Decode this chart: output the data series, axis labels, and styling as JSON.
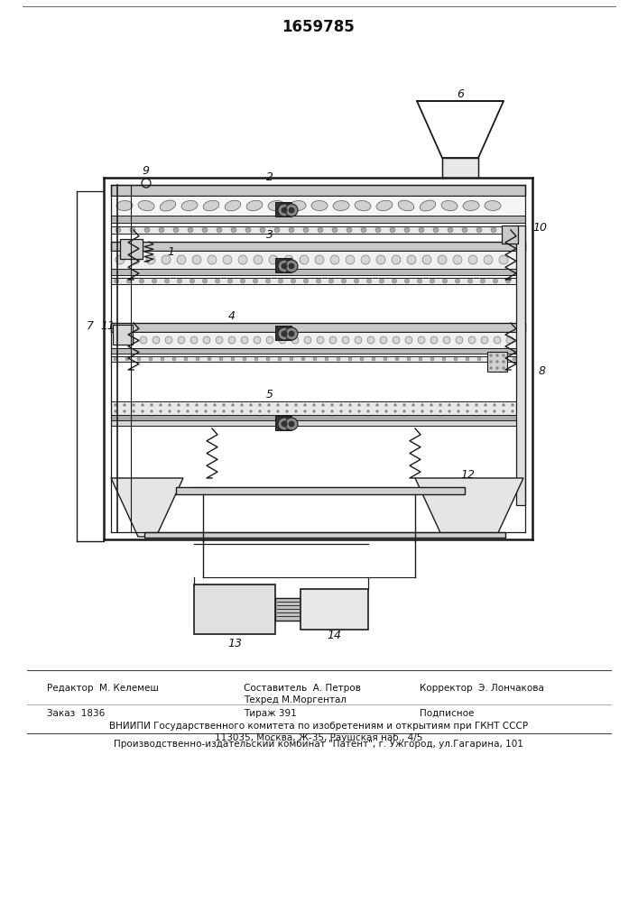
{
  "patent_number": "1659785",
  "editor_line": "Редактор  М. Келемеш",
  "compiler_line1": "Составитель  А. Петров",
  "compiler_line2": "Техред М.Моргентал",
  "corrector_line": "Корректор  Э. Лончакова",
  "order_line": "Заказ  1836",
  "circulation_line": "Тираж 391",
  "subscription_line": "Подписное",
  "vniip_line": "ВНИИПИ Государственного комитета по изобретениям и открытиям при ГКНТ СССР",
  "address_line": "113035, Москва, Ж-35, Раушская наб., 4/5",
  "production_line": "Производственно-издательский комбинат \"Патент\", г. Ужгород, ул.Гагарина, 101",
  "bg_color": "#ffffff",
  "lc": "#1a1a1a"
}
